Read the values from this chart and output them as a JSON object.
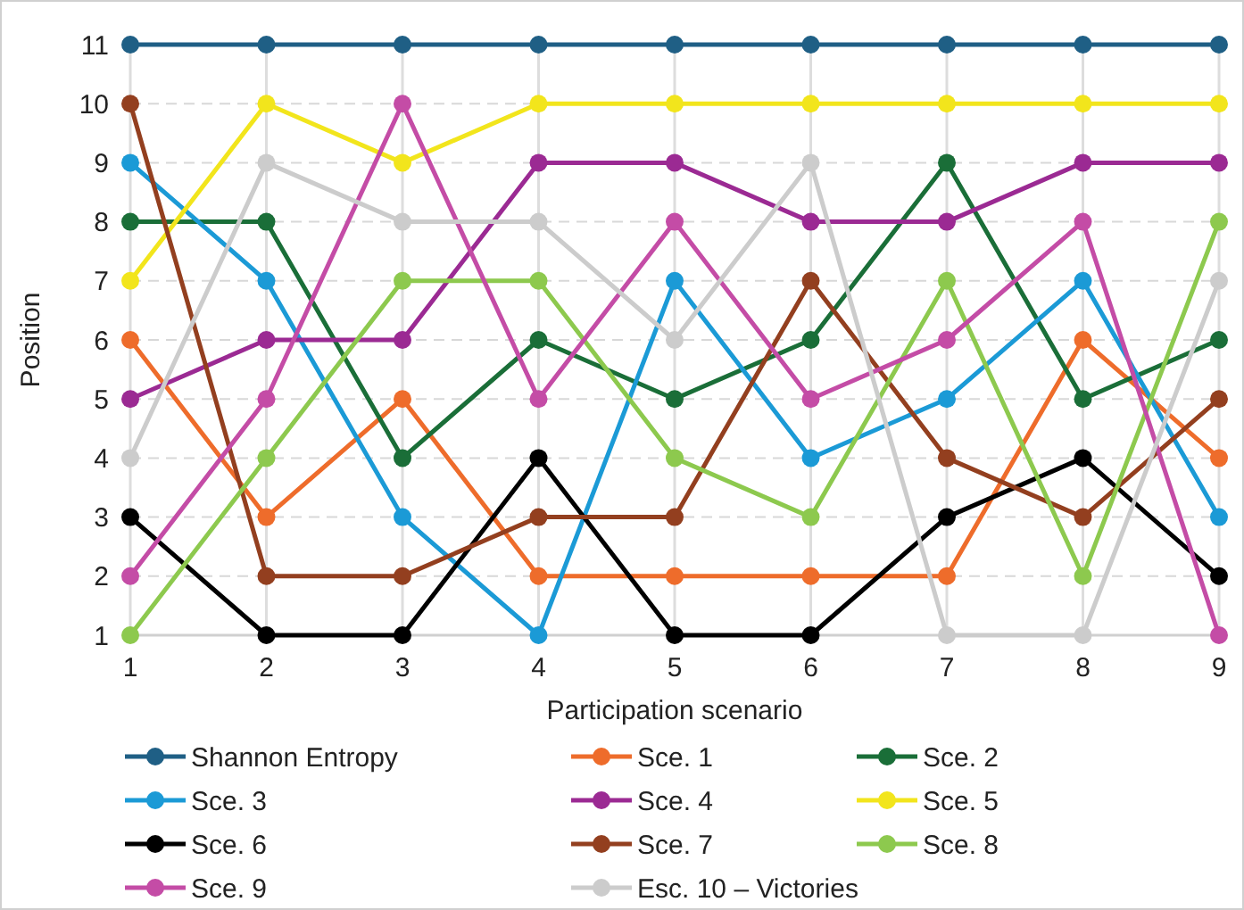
{
  "chart_data": {
    "type": "line",
    "xlabel": "Participation scenario",
    "ylabel": "Position",
    "x": [
      1,
      2,
      3,
      4,
      5,
      6,
      7,
      8,
      9
    ],
    "xlim": [
      1,
      9
    ],
    "xticks": [
      1,
      2,
      3,
      4,
      5,
      6,
      7,
      8,
      9
    ],
    "ylim": [
      1,
      11
    ],
    "yticks": [
      1,
      2,
      3,
      4,
      5,
      6,
      7,
      8,
      9,
      10,
      11
    ],
    "grid": true,
    "legend": "bottom",
    "marker": "circle",
    "line_style": "solid",
    "series": [
      {
        "name": "Shannon Entropy",
        "color": "#1f5f85",
        "values": [
          11,
          11,
          11,
          11,
          11,
          11,
          11,
          11,
          11
        ]
      },
      {
        "name": "Sce. 1",
        "color": "#ee6c2b",
        "values": [
          6,
          3,
          5,
          2,
          2,
          2,
          2,
          6,
          4
        ]
      },
      {
        "name": "Sce. 2",
        "color": "#1a6e38",
        "values": [
          8,
          8,
          4,
          6,
          5,
          6,
          9,
          5,
          6
        ]
      },
      {
        "name": "Sce. 3",
        "color": "#1b9ad6",
        "values": [
          9,
          7,
          3,
          1,
          7,
          4,
          5,
          7,
          3
        ]
      },
      {
        "name": "Sce. 4",
        "color": "#9b2a93",
        "values": [
          5,
          6,
          6,
          9,
          9,
          8,
          8,
          9,
          9
        ]
      },
      {
        "name": "Sce. 5",
        "color": "#f2e51c",
        "values": [
          7,
          10,
          9,
          10,
          10,
          10,
          10,
          10,
          10
        ]
      },
      {
        "name": "Sce. 6",
        "color": "#000000",
        "values": [
          3,
          1,
          1,
          4,
          1,
          1,
          3,
          4,
          2
        ]
      },
      {
        "name": "Sce. 7",
        "color": "#933f1f",
        "values": [
          10,
          2,
          2,
          3,
          3,
          7,
          4,
          3,
          5
        ]
      },
      {
        "name": "Sce. 8",
        "color": "#8dc94e",
        "values": [
          1,
          4,
          7,
          7,
          4,
          3,
          7,
          2,
          8
        ]
      },
      {
        "name": "Sce. 9",
        "color": "#c44ca6",
        "values": [
          2,
          5,
          10,
          5,
          8,
          5,
          6,
          8,
          1
        ]
      },
      {
        "name": "Esc. 10 – Victories",
        "color": "#cccccc",
        "values": [
          4,
          9,
          8,
          8,
          6,
          9,
          1,
          1,
          7
        ]
      }
    ]
  }
}
